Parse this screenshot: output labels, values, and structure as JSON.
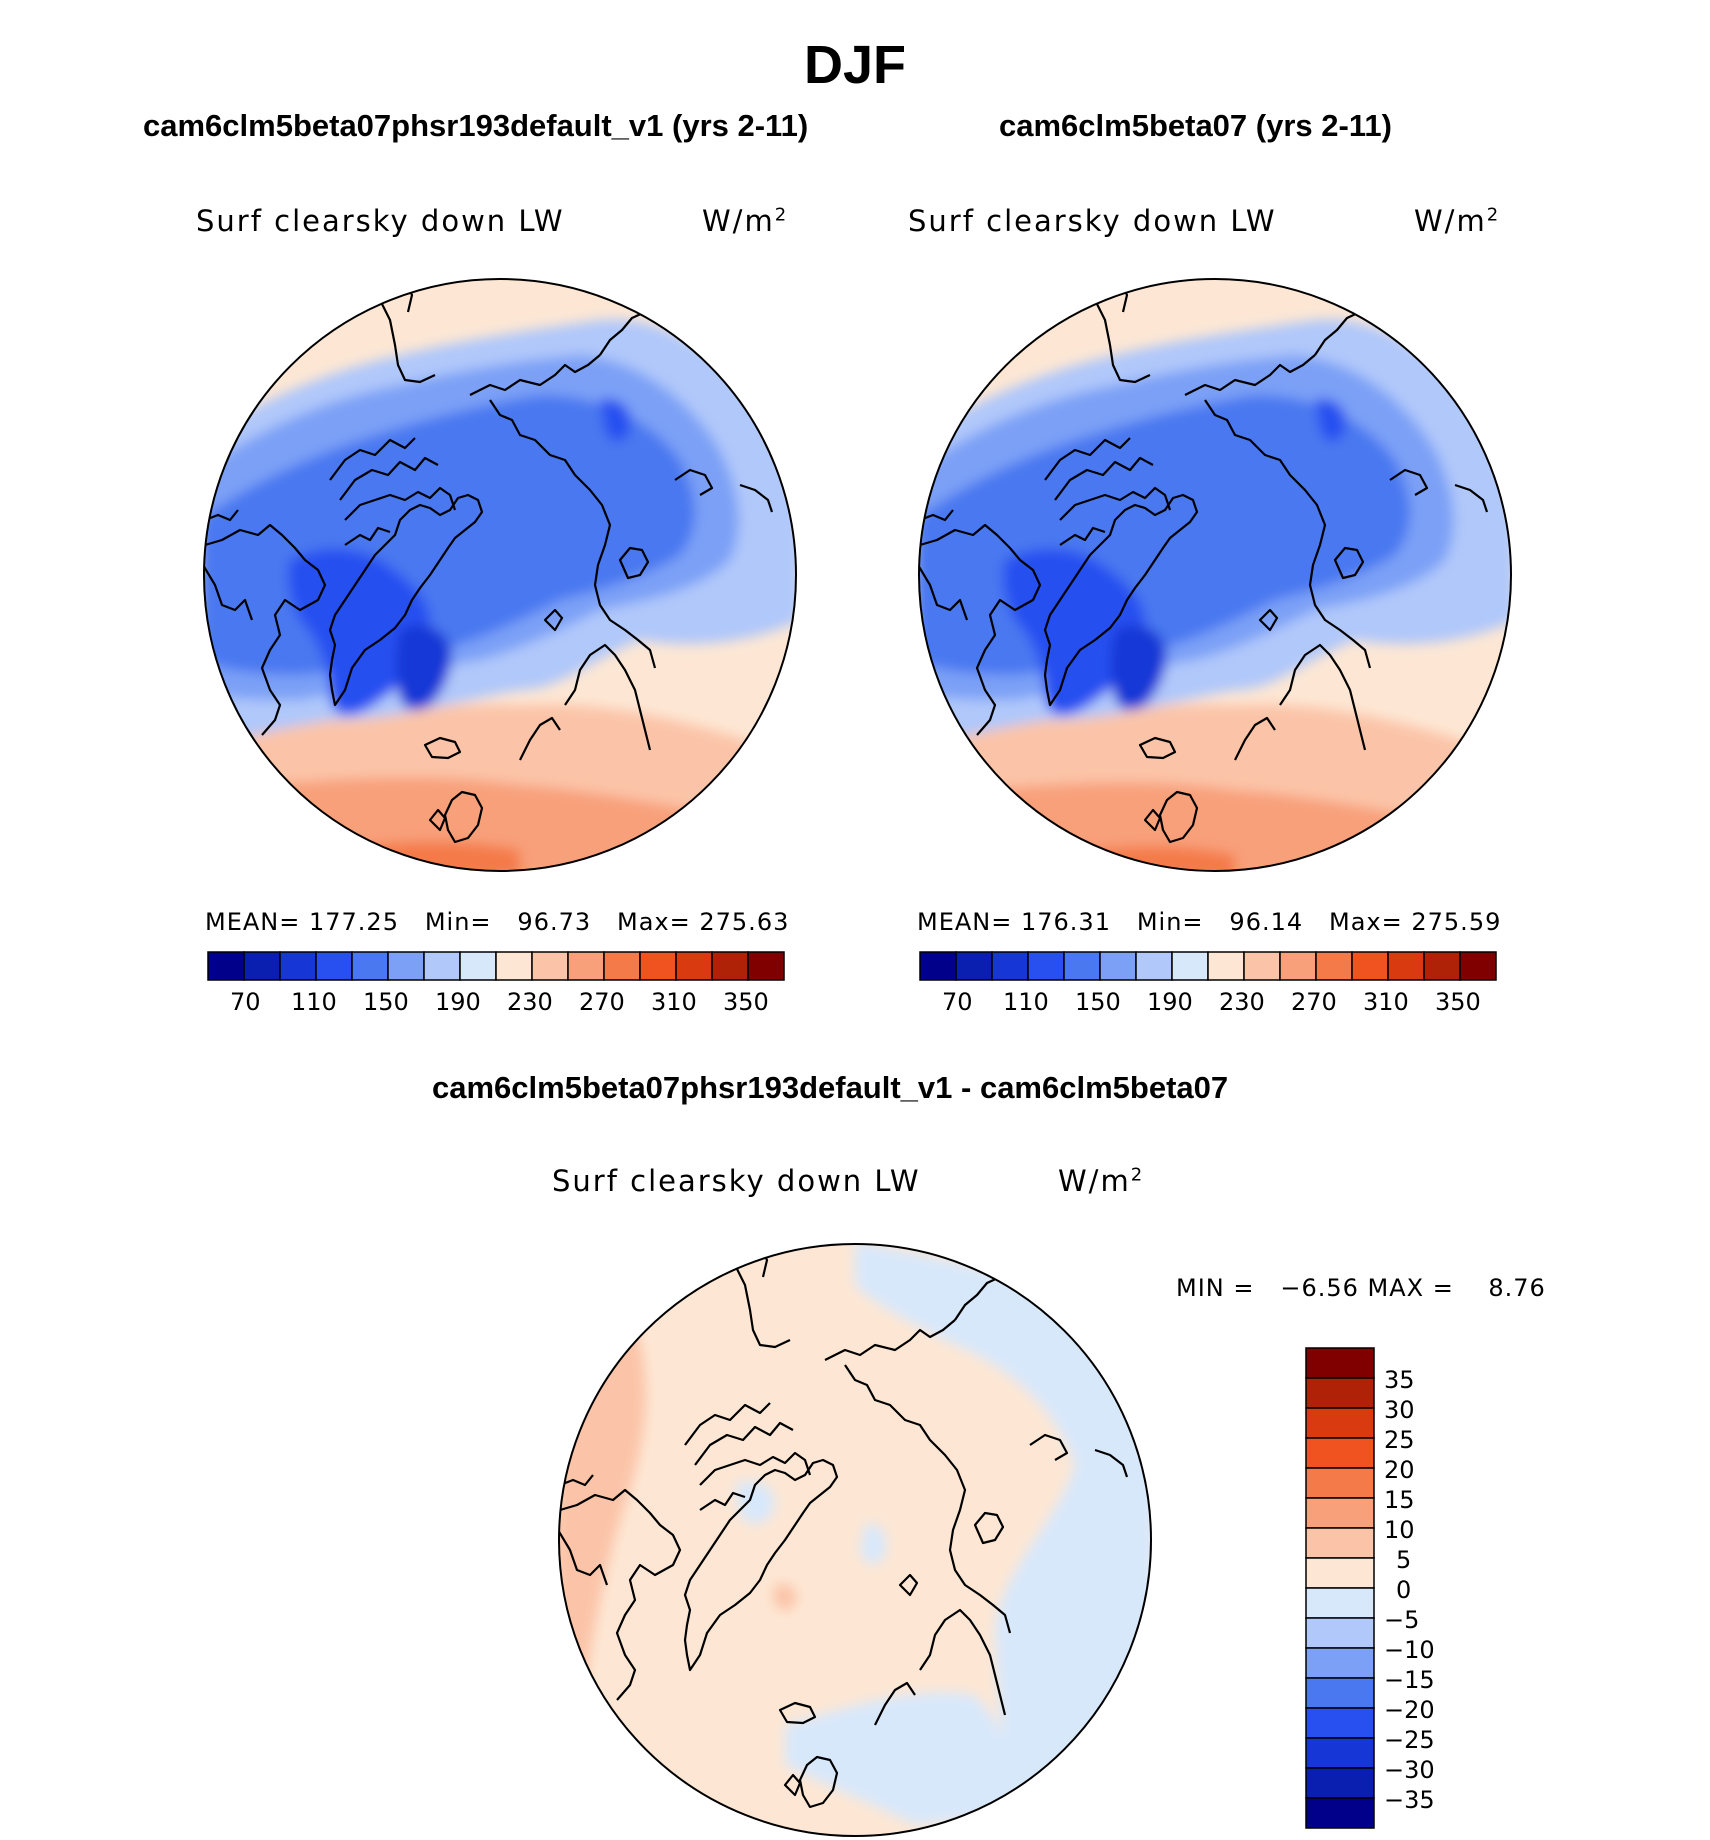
{
  "figure": {
    "title": "DJF"
  },
  "panels": [
    {
      "title": "cam6clm5beta07phsr193default_v1 (yrs 2-11)",
      "variable": "Surf clearsky down LW",
      "units": "W/m",
      "units_sup": "2",
      "stats_text": "MEAN= 177.25   Min=   96.73   Max= 275.63",
      "mean": 177.25,
      "min": 96.73,
      "max": 275.63
    },
    {
      "title": "cam6clm5beta07 (yrs 2-11)",
      "variable": "Surf clearsky down LW",
      "units": "W/m",
      "units_sup": "2",
      "stats_text": "MEAN= 176.31   Min=   96.14   Max= 275.59",
      "mean": 176.31,
      "min": 96.14,
      "max": 275.59
    },
    {
      "title": "cam6clm5beta07phsr193default_v1 - cam6clm5beta07",
      "variable": "Surf clearsky down LW",
      "units": "W/m",
      "units_sup": "2",
      "stats_text": "MIN =   −6.56 MAX =    8.76",
      "min": -6.56,
      "max": 8.76
    }
  ],
  "colorbar_abs": {
    "colors": [
      "#00008b",
      "#0a1fb0",
      "#1637d6",
      "#2850f0",
      "#4a78f0",
      "#7ba0f6",
      "#b0c8fa",
      "#d8e8fb",
      "#fde7d4",
      "#fbc4a8",
      "#f8a07a",
      "#f47a4a",
      "#f0531f",
      "#d93a10",
      "#b02208",
      "#800000"
    ],
    "tick_labels": [
      "70",
      "110",
      "150",
      "190",
      "230",
      "270",
      "310",
      "350"
    ]
  },
  "colorbar_diff": {
    "colors": [
      "#00008b",
      "#0a1fb0",
      "#1637d6",
      "#2850f0",
      "#4a78f0",
      "#7ba0f6",
      "#b0c8fa",
      "#d8e8fb",
      "#fde7d4",
      "#fbc4a8",
      "#f8a07a",
      "#f47a4a",
      "#f0531f",
      "#d93a10",
      "#b02208",
      "#800000"
    ],
    "tick_labels": [
      "35",
      "30",
      "25",
      "20",
      "15",
      "10",
      "5",
      "0",
      "−5",
      "−10",
      "−15",
      "−20",
      "−25",
      "−30",
      "−35"
    ]
  }
}
